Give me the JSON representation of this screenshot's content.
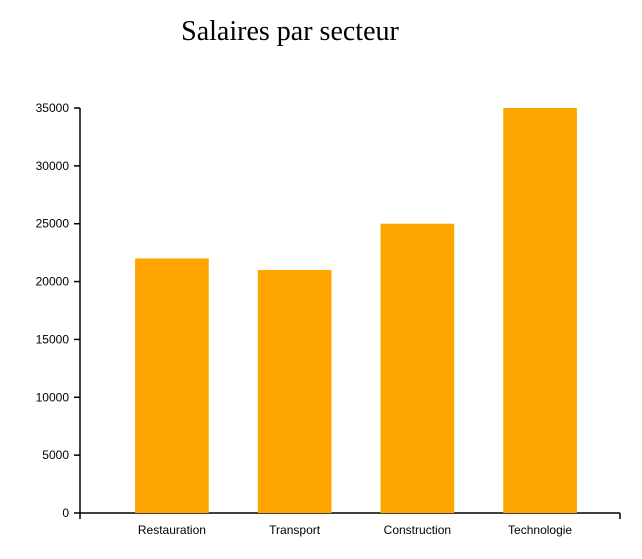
{
  "chart_data": {
    "type": "bar",
    "title": "Salaires par secteur",
    "xlabel": "",
    "ylabel": "",
    "categories": [
      "Restauration",
      "Transport",
      "Construction",
      "Technologie"
    ],
    "values": [
      22000,
      21000,
      25000,
      35000
    ],
    "ylim": [
      0,
      35000
    ],
    "yticks": [
      0,
      5000,
      10000,
      15000,
      20000,
      25000,
      30000,
      35000
    ],
    "bar_color": "#FFA500",
    "grid": false,
    "legend": "none"
  }
}
